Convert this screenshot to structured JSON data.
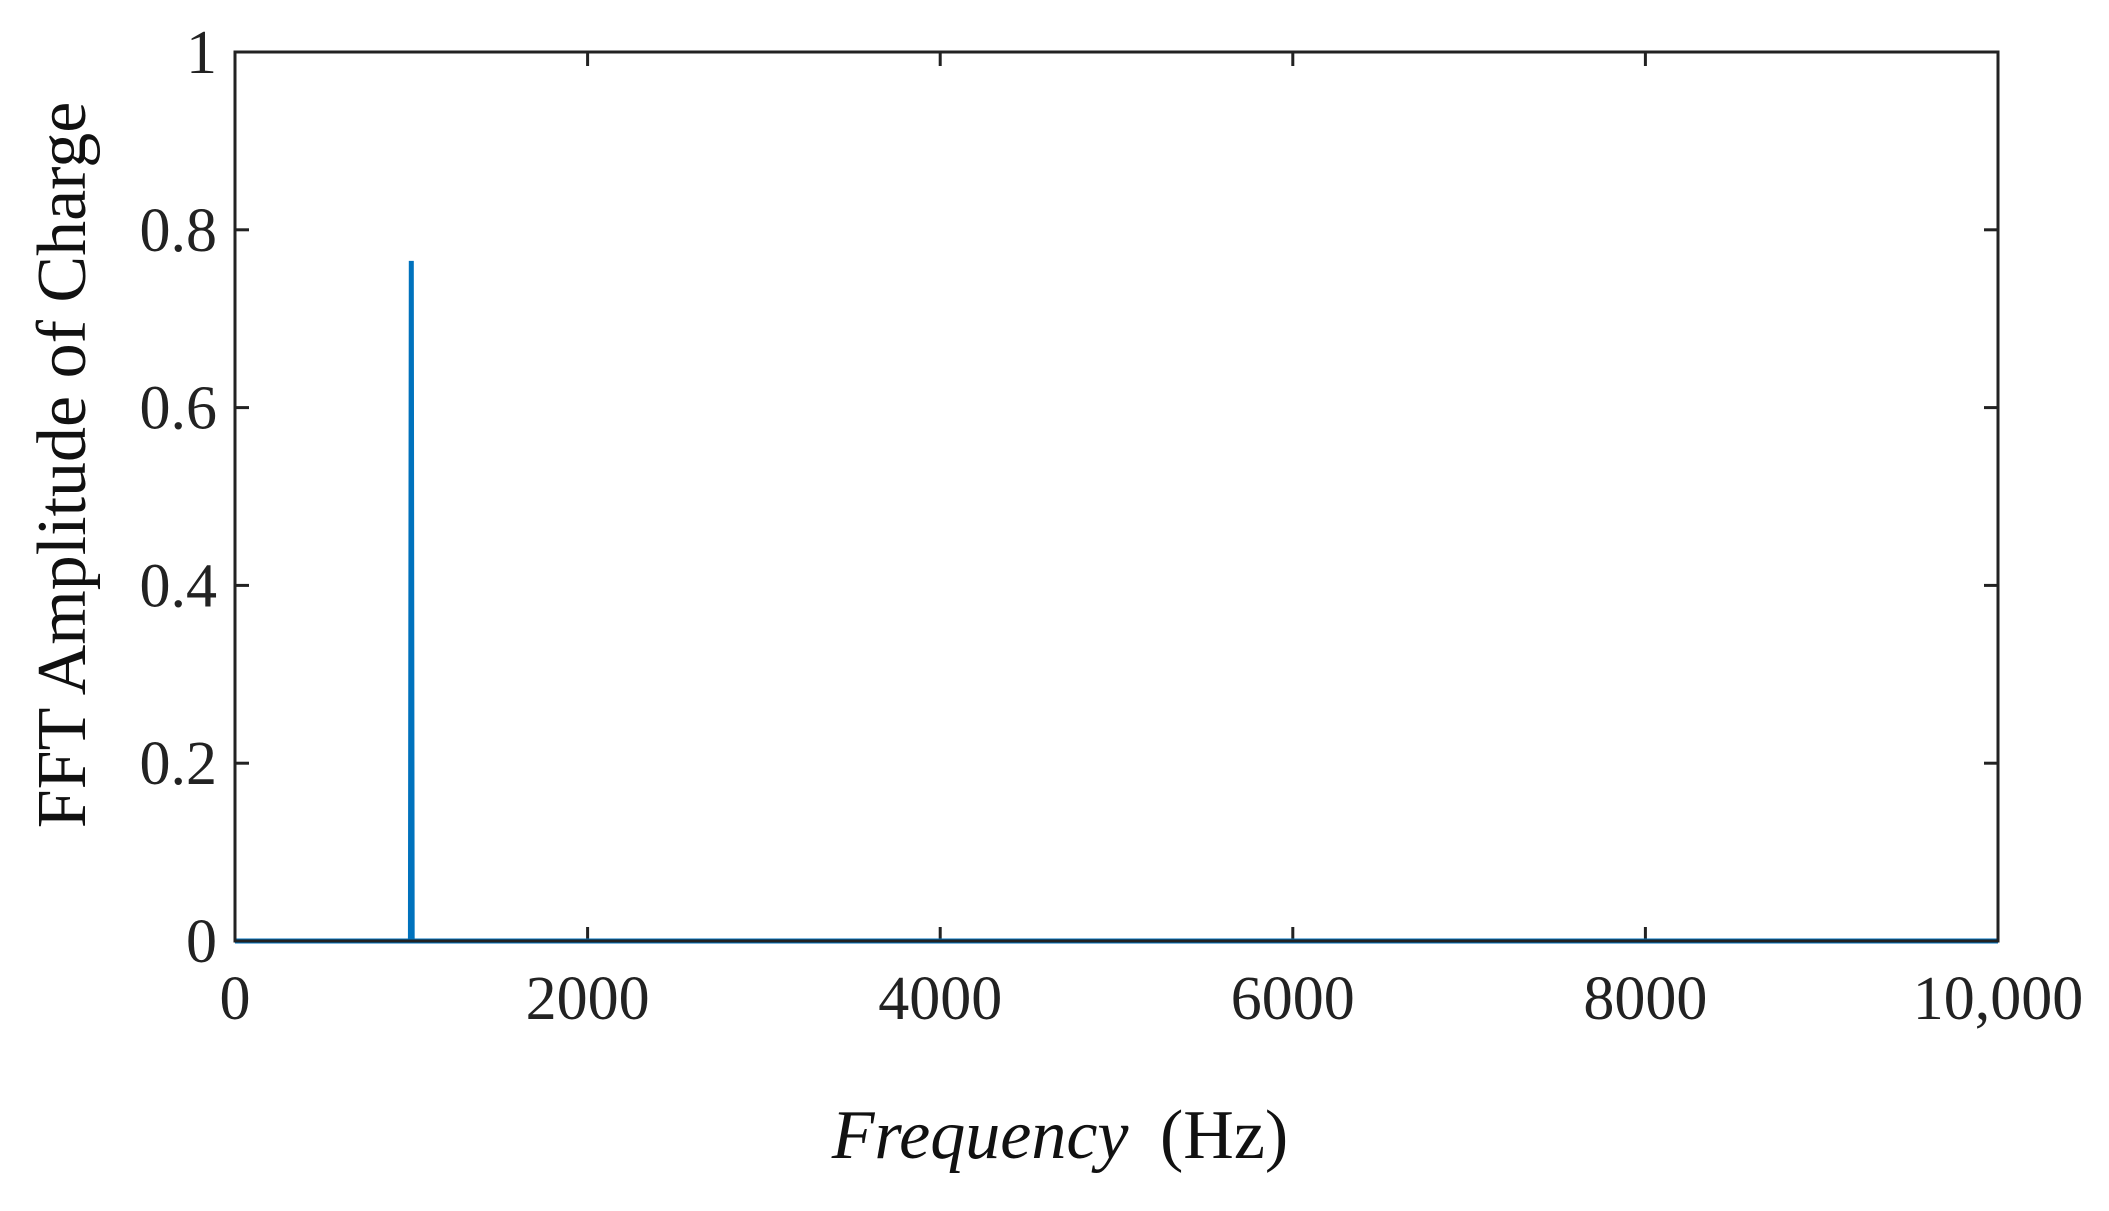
{
  "chart_data": {
    "type": "line",
    "title": "",
    "xlabel_italic": "Frequency",
    "xlabel_unit": "(Hz)",
    "ylabel": "FFT Amplitude of Charge",
    "xlim": [
      0,
      10000
    ],
    "ylim": [
      0,
      1
    ],
    "x_ticks": [
      0,
      2000,
      4000,
      6000,
      8000,
      10000
    ],
    "x_tick_labels": [
      "0",
      "2000",
      "4000",
      "6000",
      "8000",
      "10,000"
    ],
    "y_ticks": [
      0,
      0.2,
      0.4,
      0.6,
      0.8,
      1
    ],
    "y_tick_labels": [
      "0",
      "0.2",
      "0.4",
      "0.6",
      "0.8",
      "1"
    ],
    "grid": false,
    "series": [
      {
        "color": "#0072BD",
        "x": [
          0,
          995,
          1000,
          1005,
          10000
        ],
        "y": [
          0,
          0,
          0.765,
          0,
          0
        ]
      }
    ]
  }
}
